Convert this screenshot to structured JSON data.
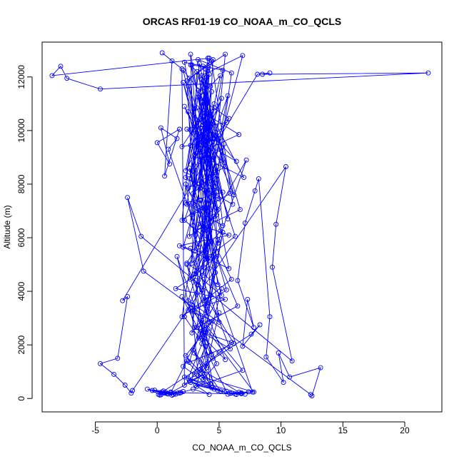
{
  "chart_data": {
    "type": "scatter",
    "title": "ORCAS RF01-19 CO_NOAA_m_CO_QCLS",
    "xlabel": "CO_NOAA_m_CO_QCLS",
    "ylabel": "Altitude (m)",
    "xlim": [
      -9.3,
      23.0
    ],
    "ylim": [
      -500,
      13300
    ],
    "xticks": [
      -5,
      0,
      5,
      10,
      15,
      20
    ],
    "yticks": [
      0,
      2000,
      4000,
      6000,
      8000,
      10000,
      12000
    ],
    "grid": false,
    "legend": "none",
    "style": {
      "point_marker": "open-circle",
      "connected_by_lines": true
    },
    "colors": {
      "series": "#0000ff",
      "axes": "#000000",
      "background": "#ffffff"
    },
    "series": [
      {
        "x": [
          1.8,
          2.9,
          4.2,
          3.1,
          5.4,
          2.2,
          6.8,
          3.5,
          4.9,
          2.6,
          3.8,
          1.1,
          2.4,
          4.4,
          3.0,
          5.1,
          2.7,
          3.9,
          4.6,
          2.1,
          3.4,
          5.7,
          2.5,
          4.1,
          3.2,
          6.9,
          3.6,
          4.3,
          2.3,
          5.0,
          3.7,
          4.8,
          2.8,
          3.3,
          7.8,
          2.0,
          4.5,
          3.5,
          5.2,
          2.9,
          4.0,
          3.1,
          6.2,
          2.6,
          4.7,
          3.8,
          5.5,
          2.4,
          3.9,
          4.4,
          1.6,
          3.0,
          5.9,
          2.7,
          4.2,
          3.6,
          4.9,
          2.2,
          3.4,
          5.3,
          4.1,
          2.8,
          3.7,
          6.5,
          3.2,
          4.6,
          2.5,
          5.0,
          3.9,
          4.3,
          2.0,
          3.5,
          5.6,
          2.9,
          4.8,
          3.3,
          4.0,
          2.3,
          6.0,
          3.8,
          4.5,
          3.1,
          5.2,
          2.6,
          4.2,
          3.6,
          7.2,
          2.4,
          4.9,
          3.4,
          4.1,
          2.7,
          5.4,
          3.9,
          3.0,
          4.7,
          2.1,
          5.8,
          3.5,
          4.4,
          2.8,
          3.2,
          6.3,
          4.0,
          2.5,
          5.1,
          3.7,
          4.6,
          2.9,
          3.3,
          5.7,
          2.2,
          4.3,
          3.8,
          4.8,
          2.6,
          3.6,
          6.7,
          3.1,
          4.2,
          2.4,
          5.3,
          3.9,
          4.5,
          2.0,
          3.4,
          5.9,
          2.8,
          4.1,
          3.5,
          4.9,
          2.7,
          3.0,
          6.1,
          4.4,
          2.3,
          5.0,
          3.7,
          4.7,
          2.9,
          3.2,
          5.5,
          2.5,
          4.0,
          3.8,
          4.6,
          2.1,
          3.6,
          7.0,
          3.3,
          4.2,
          2.6,
          5.2,
          3.9,
          4.8,
          2.2,
          3.4,
          6.4,
          2.9,
          4.5,
          3.1,
          5.6,
          2.4,
          4.1,
          3.7,
          4.3,
          2.7,
          5.0,
          3.5,
          4.9,
          2.0,
          3.8,
          6.6,
          3.0,
          4.6,
          2.8,
          5.4,
          3.6,
          4.2,
          2.3,
          3.3,
          5.8,
          2.6,
          4.4,
          3.9,
          4.7,
          2.5,
          3.2,
          6.2,
          3.7,
          4.0,
          2.9,
          5.1,
          3.4,
          4.8,
          2.1,
          3.5,
          5.7,
          2.7,
          4.3,
          3.8,
          4.5,
          2.4,
          3.1,
          6.9,
          3.6,
          4.9,
          2.2,
          5.3,
          3.0,
          4.1,
          2.8,
          3.9,
          6.0,
          3.3,
          4.6,
          2.6,
          5.5,
          3.7,
          4.2,
          -8.5,
          -7.8,
          -7.3,
          -4.6,
          21.9,
          8.5,
          9.1,
          8.1,
          -2.8,
          -2.4,
          -3.2,
          -4.6,
          -3.5,
          -2.6,
          -2.1,
          -2.0,
          10.4,
          9.6,
          9.3,
          10.9,
          -1.3,
          -2.4,
          -1.1,
          12.4,
          12.5,
          13.2,
          10.7,
          9.8,
          10.2,
          8.8,
          9.1,
          8.2,
          7.9,
          7.1,
          6.5,
          7.8,
          7.3,
          6.9,
          8.3,
          7.6,
          0.1,
          0.4,
          0.8,
          1.2,
          -0.4,
          0.6,
          1.5,
          -0.8,
          0.3,
          1.9,
          2.1,
          1.4,
          0.9,
          1.7,
          0.2,
          0.5,
          1.1,
          -0.2,
          1.3,
          0.7,
          6.3,
          6.8,
          7.4,
          5.9,
          6.6,
          7.1,
          6.0,
          5.6,
          6.4,
          7.7,
          0.9,
          1.6,
          0.3,
          1.0,
          0.0,
          1.8,
          0.6,
          1.2,
          0.4,
          2.0,
          2.2,
          3.0,
          4.0,
          5.0,
          6.0,
          3.5,
          4.5,
          2.5,
          5.5,
          1.5,
          2.8,
          3.8,
          4.8,
          1.8,
          5.8,
          3.3,
          4.3,
          2.3,
          5.3,
          3.6
        ],
        "y": [
          200,
          350,
          150,
          500,
          250,
          800,
          180,
          1100,
          300,
          650,
          900,
          220,
          1400,
          400,
          1700,
          280,
          600,
          1950,
          350,
          1200,
          2300,
          160,
          750,
          2600,
          450,
          1050,
          2900,
          550,
          1600,
          3200,
          700,
          1300,
          3500,
          850,
          240,
          3800,
          1500,
          950,
          4100,
          1800,
          1150,
          4400,
          2050,
          1350,
          4700,
          2250,
          1450,
          5000,
          2450,
          1650,
          5300,
          2650,
          1850,
          5600,
          2850,
          2050,
          5900,
          3050,
          2250,
          6200,
          3250,
          2450,
          6500,
          3450,
          2650,
          6800,
          3650,
          2850,
          7100,
          3850,
          3050,
          7400,
          4050,
          3250,
          7700,
          4250,
          3450,
          8000,
          4450,
          3650,
          8300,
          4650,
          3850,
          8600,
          4850,
          4050,
          8900,
          5050,
          4250,
          9200,
          5250,
          4450,
          9500,
          5450,
          4650,
          9800,
          5650,
          4850,
          10100,
          5850,
          5050,
          10400,
          6050,
          5250,
          10700,
          6250,
          5450,
          11000,
          6450,
          5650,
          11300,
          6650,
          5850,
          11600,
          6850,
          6050,
          11900,
          7050,
          6250,
          12100,
          7250,
          6450,
          12300,
          7450,
          6650,
          12500,
          7650,
          6850,
          12700,
          7850,
          7050,
          12850,
          8050,
          7250,
          12600,
          8250,
          7450,
          12400,
          8450,
          7650,
          12200,
          8650,
          7850,
          12000,
          8850,
          8050,
          11800,
          9050,
          8250,
          11500,
          9250,
          8450,
          11200,
          9450,
          8650,
          10900,
          9650,
          8850,
          10600,
          9850,
          9050,
          10300,
          10050,
          9250,
          10000,
          10250,
          9450,
          9700,
          10450,
          9650,
          9400,
          10650,
          9850,
          9100,
          10850,
          10050,
          8800,
          11050,
          10250,
          8500,
          11250,
          10450,
          8200,
          11450,
          10650,
          7900,
          11650,
          10850,
          7600,
          11850,
          11050,
          7300,
          12050,
          11250,
          7000,
          12250,
          11450,
          6700,
          12450,
          11650,
          6400,
          12650,
          11850,
          6100,
          12800,
          12050,
          5800,
          12550,
          12250,
          5500,
          12350,
          12450,
          5200,
          12150,
          12650,
          4900,
          11950,
          12850,
          4600,
          12700,
          12050,
          12400,
          11950,
          11550,
          12150,
          12100,
          12150,
          12100,
          3650,
          3800,
          1500,
          1300,
          900,
          500,
          200,
          300,
          8650,
          6500,
          4900,
          1400,
          6050,
          7500,
          4750,
          150,
          100,
          1150,
          800,
          1700,
          600,
          1550,
          3050,
          8200,
          7750,
          6550,
          4400,
          2650,
          3700,
          1950,
          2750,
          2400,
          150,
          250,
          180,
          120,
          300,
          200,
          160,
          350,
          140,
          220,
          260,
          190,
          170,
          210,
          130,
          280,
          240,
          310,
          150,
          230,
          170,
          210,
          250,
          190,
          230,
          160,
          200,
          270,
          150,
          240,
          9300,
          9700,
          10100,
          8750,
          9550,
          10050,
          8300,
          12600,
          12900,
          12300,
          500,
          900,
          1300,
          1700,
          2100,
          2500,
          2900,
          3300,
          3700,
          4100,
          4500,
          4900,
          5300,
          5700,
          6100,
          6500,
          6900,
          7300,
          7700,
          8100
        ]
      }
    ]
  }
}
